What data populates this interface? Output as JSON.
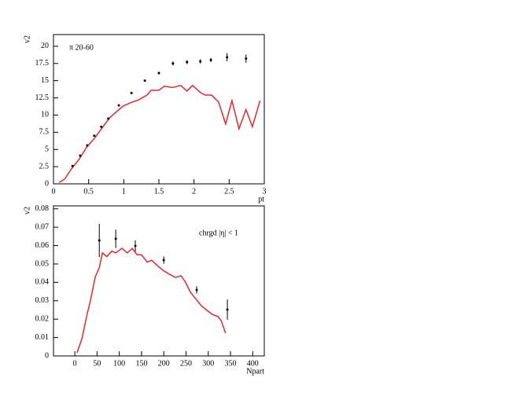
{
  "chart_data": [
    {
      "type": "scatter-line",
      "xlabel": "pt",
      "ylabel": "v2",
      "annotation": "π  20-60",
      "xlim": [
        0,
        3
      ],
      "xticks": [
        0,
        0.5,
        1,
        1.5,
        2,
        2.5,
        3
      ],
      "ylim": [
        0,
        21.7
      ],
      "yticks": [
        0,
        2.5,
        5,
        7.5,
        10,
        12.5,
        15,
        17.5,
        20
      ],
      "series": [
        {
          "type": "line",
          "color": "#e8262b",
          "x": [
            0.08,
            0.16,
            0.25,
            0.36,
            0.47,
            0.59,
            0.69,
            0.8,
            0.91,
            0.99,
            1.1,
            1.21,
            1.33,
            1.39,
            1.5,
            1.58,
            1.69,
            1.81,
            1.9,
            1.98,
            2.1,
            2.16,
            2.25,
            2.35,
            2.45,
            2.54,
            2.64,
            2.74,
            2.83,
            2.94
          ],
          "values": [
            0.2,
            0.7,
            2.1,
            3.5,
            5.3,
            6.7,
            8.1,
            9.6,
            10.6,
            11.3,
            11.8,
            12.2,
            12.9,
            13.6,
            13.6,
            14.2,
            14.0,
            14.3,
            13.5,
            14.3,
            13.2,
            12.9,
            12.9,
            11.9,
            8.7,
            12.1,
            8.0,
            10.8,
            8.3,
            12.1
          ]
        },
        {
          "type": "scatter",
          "color": "#000000",
          "x": [
            0.27,
            0.38,
            0.48,
            0.58,
            0.68,
            0.78,
            0.93,
            1.11,
            1.3,
            1.5,
            1.7,
            1.9,
            2.09,
            2.24,
            2.47,
            2.74
          ],
          "values": [
            2.6,
            4.1,
            5.6,
            7.0,
            8.3,
            9.5,
            11.4,
            13.2,
            15.0,
            16.1,
            17.5,
            17.7,
            17.8,
            18.0,
            18.4,
            18.2
          ],
          "errors": [
            0.1,
            0.1,
            0.1,
            0.1,
            0.1,
            0.1,
            0.1,
            0.1,
            0.1,
            0.2,
            0.3,
            0.3,
            0.3,
            0.3,
            0.6,
            0.6
          ]
        }
      ]
    },
    {
      "type": "scatter-line",
      "xlabel": "Npart",
      "ylabel": "v2",
      "annotation": "chrgd    |η| < 1",
      "xlim": [
        -48,
        426
      ],
      "xticks": [
        0,
        50,
        100,
        150,
        200,
        250,
        300,
        350,
        400
      ],
      "ylim": [
        0,
        0.0816
      ],
      "yticks": [
        0,
        0.01,
        0.02,
        0.03,
        0.04,
        0.05,
        0.06,
        0.07,
        0.08
      ],
      "series": [
        {
          "type": "line",
          "color": "#e8262b",
          "x": [
            5,
            16,
            27,
            35,
            46,
            55,
            62,
            72,
            83,
            92,
            106,
            118,
            129,
            140,
            150,
            163,
            173,
            184,
            198,
            212,
            226,
            239,
            249,
            260,
            270,
            284,
            299,
            309,
            322,
            329,
            339
          ],
          "values": [
            0.0017,
            0.0094,
            0.022,
            0.03,
            0.043,
            0.048,
            0.056,
            0.054,
            0.057,
            0.056,
            0.0585,
            0.056,
            0.0585,
            0.055,
            0.055,
            0.051,
            0.052,
            0.0495,
            0.0466,
            0.0445,
            0.0427,
            0.0436,
            0.04,
            0.0346,
            0.0316,
            0.0274,
            0.0244,
            0.0226,
            0.0214,
            0.0192,
            0.0124
          ]
        },
        {
          "type": "scatter",
          "color": "#000000",
          "x": [
            55,
            92,
            136,
            200,
            274,
            343
          ],
          "values": [
            0.0628,
            0.0637,
            0.0598,
            0.0521,
            0.0359,
            0.0252
          ],
          "errors": [
            0.009,
            0.005,
            0.003,
            0.002,
            0.002,
            0.0055
          ]
        }
      ]
    }
  ]
}
